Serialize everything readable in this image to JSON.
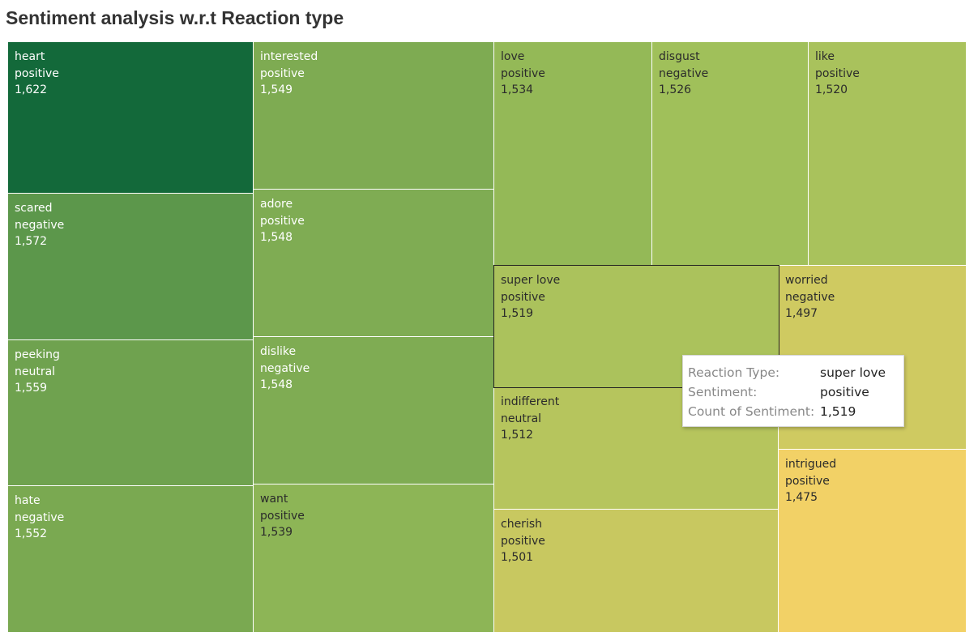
{
  "page": {
    "title": "Sentiment analysis w.r.t Reaction type"
  },
  "chart_data": {
    "type": "treemap",
    "title": "Sentiment analysis w.r.t Reaction type",
    "measure": "Count of Sentiment",
    "color_scale": {
      "min": 1475,
      "max": 1622,
      "min_color": "#f2d166",
      "mid_color": "#9fc05a",
      "max_color": "#13693a"
    },
    "items": [
      {
        "reaction": "heart",
        "sentiment": "positive",
        "count": 1622,
        "display": "1,622"
      },
      {
        "reaction": "scared",
        "sentiment": "negative",
        "count": 1572,
        "display": "1,572"
      },
      {
        "reaction": "peeking",
        "sentiment": "neutral",
        "count": 1559,
        "display": "1,559"
      },
      {
        "reaction": "hate",
        "sentiment": "negative",
        "count": 1552,
        "display": "1,552"
      },
      {
        "reaction": "interested",
        "sentiment": "positive",
        "count": 1549,
        "display": "1,549"
      },
      {
        "reaction": "adore",
        "sentiment": "positive",
        "count": 1548,
        "display": "1,548"
      },
      {
        "reaction": "dislike",
        "sentiment": "negative",
        "count": 1548,
        "display": "1,548"
      },
      {
        "reaction": "want",
        "sentiment": "positive",
        "count": 1539,
        "display": "1,539"
      },
      {
        "reaction": "love",
        "sentiment": "positive",
        "count": 1534,
        "display": "1,534"
      },
      {
        "reaction": "disgust",
        "sentiment": "negative",
        "count": 1526,
        "display": "1,526"
      },
      {
        "reaction": "like",
        "sentiment": "positive",
        "count": 1520,
        "display": "1,520"
      },
      {
        "reaction": "super love",
        "sentiment": "positive",
        "count": 1519,
        "display": "1,519"
      },
      {
        "reaction": "indifferent",
        "sentiment": "neutral",
        "count": 1512,
        "display": "1,512"
      },
      {
        "reaction": "cherish",
        "sentiment": "positive",
        "count": 1501,
        "display": "1,501"
      },
      {
        "reaction": "worried",
        "sentiment": "negative",
        "count": 1497,
        "display": "1,497"
      },
      {
        "reaction": "intrigued",
        "sentiment": "positive",
        "count": 1475,
        "display": "1,475"
      }
    ],
    "selected_index": 11
  },
  "tooltip": {
    "rows": [
      {
        "label": "Reaction Type:",
        "value": "super love"
      },
      {
        "label": "Sentiment:",
        "value": "positive"
      },
      {
        "label": "Count of Sentiment:",
        "value": "1,519"
      }
    ]
  }
}
